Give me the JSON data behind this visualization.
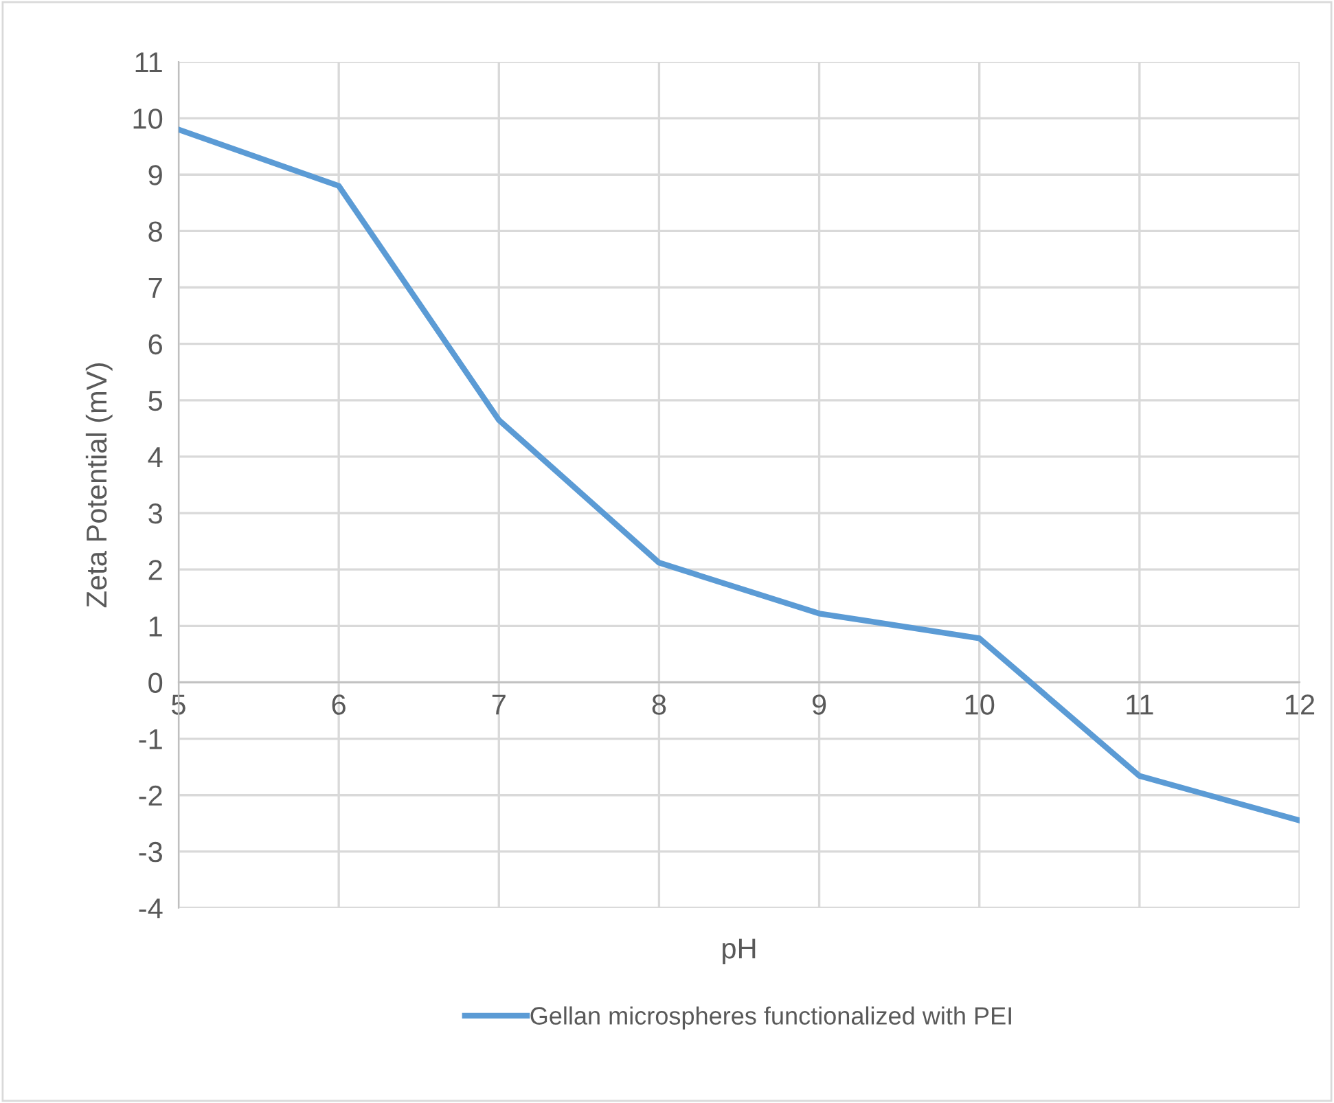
{
  "chart_data": {
    "type": "line",
    "xlabel": "pH",
    "ylabel": "Zeta Potential (mV)",
    "x": [
      5,
      6,
      7,
      8,
      9,
      10,
      11,
      12
    ],
    "series": [
      {
        "name": "Gellan microspheres functionalized with PEI",
        "color": "#5b9bd5",
        "values": [
          9.8,
          8.8,
          4.65,
          2.12,
          1.22,
          0.78,
          -1.66,
          -2.45
        ]
      }
    ],
    "xlim": [
      5,
      12
    ],
    "xticks": [
      5,
      6,
      7,
      8,
      9,
      10,
      11,
      12
    ],
    "ylim": [
      -4,
      11
    ],
    "yticks": [
      -4,
      -3,
      -2,
      -1,
      0,
      1,
      2,
      3,
      4,
      5,
      6,
      7,
      8,
      9,
      10,
      11
    ],
    "grid": true,
    "legend": "bottom",
    "marker": "none",
    "line_style": "solid"
  }
}
